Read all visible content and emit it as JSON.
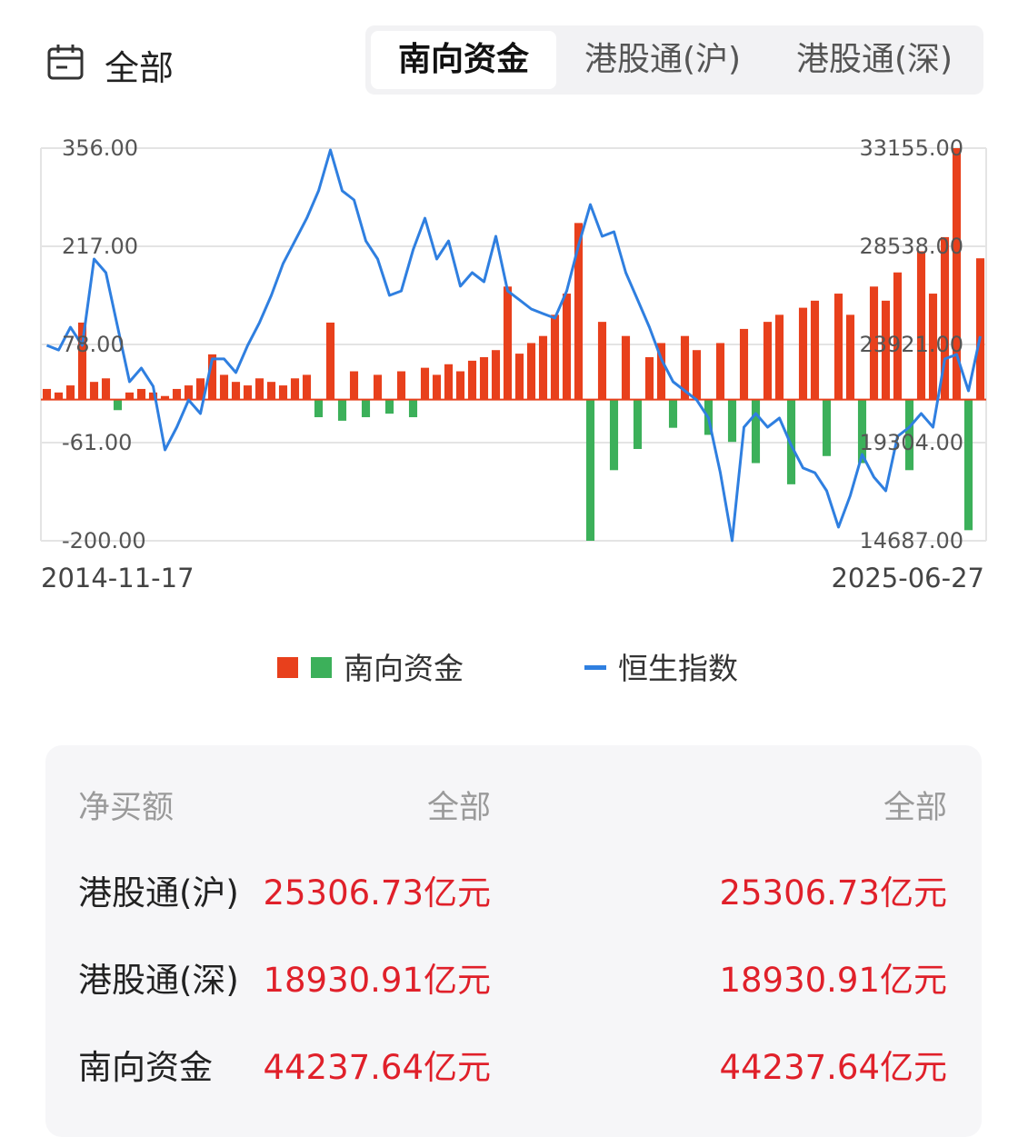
{
  "header": {
    "label": "全部",
    "tabs": [
      "南向资金",
      "港股通(沪)",
      "港股通(深)"
    ],
    "active_tab": 0
  },
  "chart_data": {
    "type": "bar-line",
    "categories": [
      "2014-11-17",
      null,
      null,
      null,
      null,
      null,
      null,
      null,
      null,
      null,
      null,
      null,
      null,
      null,
      null,
      null,
      null,
      null,
      null,
      null,
      null,
      null,
      null,
      null,
      null,
      null,
      null,
      null,
      null,
      null,
      null,
      null,
      null,
      null,
      null,
      null,
      null,
      null,
      null,
      null,
      null,
      null,
      null,
      null,
      null,
      null,
      null,
      null,
      null,
      null,
      null,
      null,
      null,
      null,
      null,
      null,
      null,
      null,
      null,
      null,
      null,
      null,
      null,
      null,
      null,
      null,
      null,
      null,
      null,
      null,
      null,
      null,
      null,
      null,
      null,
      null,
      null,
      null,
      null,
      "2025-06-27"
    ],
    "series": [
      {
        "name": "南向资金",
        "type": "bar",
        "positive_color": "#e8401c",
        "negative_color": "#3cb05a",
        "values": [
          15,
          10,
          20,
          109,
          25,
          30,
          -15,
          10,
          15,
          10,
          5,
          15,
          20,
          30,
          64,
          35,
          25,
          20,
          30,
          25,
          20,
          30,
          35,
          -25,
          109,
          -30,
          40,
          -25,
          35,
          -20,
          40,
          -25,
          45,
          35,
          50,
          40,
          55,
          60,
          70,
          160,
          65,
          80,
          90,
          120,
          150,
          250,
          -200,
          110,
          -100,
          90,
          -70,
          60,
          80,
          -40,
          90,
          70,
          -50,
          80,
          -60,
          100,
          -90,
          110,
          120,
          -120,
          130,
          140,
          -80,
          150,
          120,
          -90,
          160,
          140,
          180,
          -100,
          210,
          150,
          230,
          356,
          -185,
          200
        ]
      },
      {
        "name": "恒生指数",
        "type": "line",
        "axis": "y2",
        "color": "#2f7fe0",
        "values": [
          23880,
          23660,
          24730,
          23880,
          27940,
          27300,
          24730,
          22170,
          22810,
          21950,
          18960,
          20030,
          21310,
          20670,
          23240,
          23240,
          22600,
          23880,
          24950,
          26230,
          27730,
          28790,
          29860,
          31150,
          33070,
          31150,
          30720,
          28790,
          27940,
          26230,
          26440,
          28370,
          29860,
          27940,
          28790,
          26660,
          27300,
          26870,
          29010,
          26440,
          26020,
          25590,
          25370,
          25160,
          26440,
          28580,
          30500,
          29010,
          29220,
          27300,
          26020,
          24730,
          23240,
          22170,
          21740,
          21310,
          20460,
          17890,
          14690,
          20030,
          20670,
          20030,
          20460,
          19180,
          18110,
          17890,
          17040,
          15330,
          16820,
          18750,
          17680,
          17040,
          19600,
          20030,
          20670,
          20030,
          23240,
          23450,
          21740,
          24310
        ]
      }
    ],
    "ylim": [
      -200,
      356
    ],
    "yticks": [
      {
        "value": 356,
        "label": "356.00"
      },
      {
        "value": 217,
        "label": "217.00"
      },
      {
        "value": 78,
        "label": "78.00"
      },
      {
        "value": -61,
        "label": "-61.00"
      },
      {
        "value": -200,
        "label": "-200.00"
      }
    ],
    "y2lim": [
      14687,
      33155
    ],
    "y2ticks": [
      {
        "value": 33155,
        "label": "33155.00"
      },
      {
        "value": 28538,
        "label": "28538.00"
      },
      {
        "value": 23921,
        "label": "23921.00"
      },
      {
        "value": 19304,
        "label": "19304.00"
      },
      {
        "value": 14687,
        "label": "14687.00"
      }
    ],
    "grid": true
  },
  "table": {
    "header": [
      "净买额",
      "全部",
      "全部"
    ],
    "rows": [
      [
        "港股通(沪)",
        "25306.73亿元",
        "25306.73亿元"
      ],
      [
        "港股通(深)",
        "18930.91亿元",
        "18930.91亿元"
      ],
      [
        "南向资金",
        "44237.64亿元",
        "44237.64亿元"
      ]
    ]
  }
}
